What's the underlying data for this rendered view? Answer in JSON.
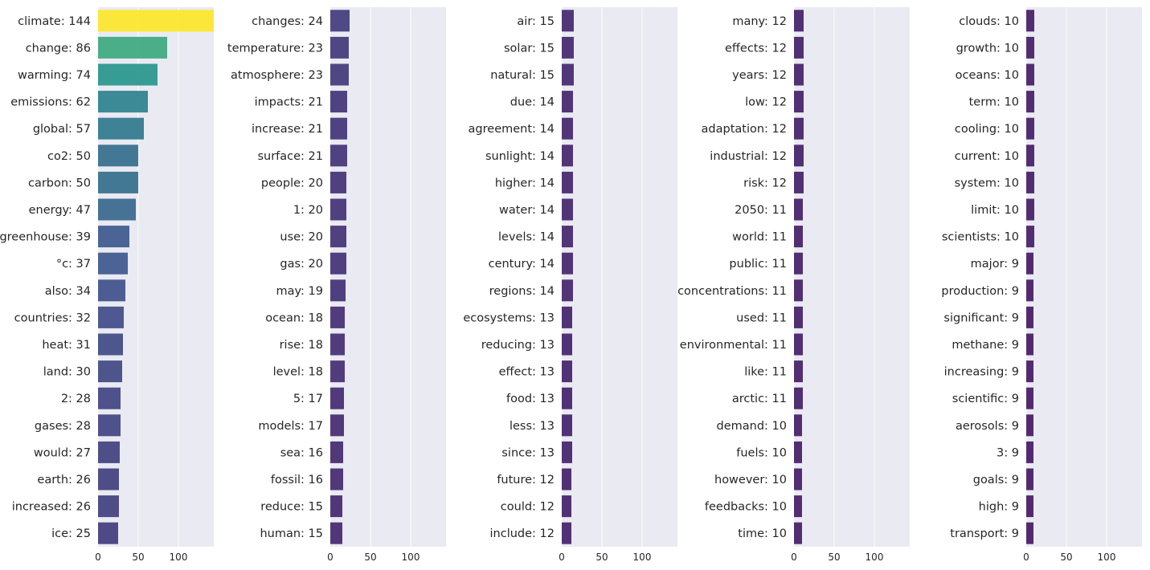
{
  "chart_data": {
    "type": "bar",
    "orientation": "horizontal",
    "xlim": [
      0,
      144
    ],
    "xticks": [
      0,
      50,
      100
    ],
    "grid": true,
    "palette": "viridis",
    "panels": [
      {
        "categories": [
          "climate: 144",
          "change: 86",
          "warming: 74",
          "emissions: 62",
          "global: 57",
          "co2: 50",
          "carbon: 50",
          "energy: 47",
          "greenhouse: 39",
          "°c: 37",
          "also: 34",
          "countries: 32",
          "heat: 31",
          "land: 30",
          "2: 28",
          "gases: 28",
          "would: 27",
          "earth: 26",
          "increased: 26",
          "ice: 25"
        ],
        "values": [
          144,
          86,
          74,
          62,
          57,
          50,
          50,
          47,
          39,
          37,
          34,
          32,
          31,
          30,
          28,
          28,
          27,
          26,
          26,
          25
        ]
      },
      {
        "categories": [
          "changes: 24",
          "temperature: 23",
          "atmosphere: 23",
          "impacts: 21",
          "increase: 21",
          "surface: 21",
          "people: 20",
          "1: 20",
          "use: 20",
          "gas: 20",
          "may: 19",
          "ocean: 18",
          "rise: 18",
          "level: 18",
          "5: 17",
          "models: 17",
          "sea: 16",
          "fossil: 16",
          "reduce: 15",
          "human: 15"
        ],
        "values": [
          24,
          23,
          23,
          21,
          21,
          21,
          20,
          20,
          20,
          20,
          19,
          18,
          18,
          18,
          17,
          17,
          16,
          16,
          15,
          15
        ]
      },
      {
        "categories": [
          "air: 15",
          "solar: 15",
          "natural: 15",
          "due: 14",
          "agreement: 14",
          "sunlight: 14",
          "higher: 14",
          "water: 14",
          "levels: 14",
          "century: 14",
          "regions: 14",
          "ecosystems: 13",
          "reducing: 13",
          "effect: 13",
          "food: 13",
          "less: 13",
          "since: 13",
          "future: 12",
          "could: 12",
          "include: 12"
        ],
        "values": [
          15,
          15,
          15,
          14,
          14,
          14,
          14,
          14,
          14,
          14,
          14,
          13,
          13,
          13,
          13,
          13,
          13,
          12,
          12,
          12
        ]
      },
      {
        "categories": [
          "many: 12",
          "effects: 12",
          "years: 12",
          "low: 12",
          "adaptation: 12",
          "industrial: 12",
          "risk: 12",
          "2050: 11",
          "world: 11",
          "public: 11",
          "concentrations: 11",
          "used: 11",
          "environmental: 11",
          "like: 11",
          "arctic: 11",
          "demand: 10",
          "fuels: 10",
          "however: 10",
          "feedbacks: 10",
          "time: 10"
        ],
        "values": [
          12,
          12,
          12,
          12,
          12,
          12,
          12,
          11,
          11,
          11,
          11,
          11,
          11,
          11,
          11,
          10,
          10,
          10,
          10,
          10
        ]
      },
      {
        "categories": [
          "clouds: 10",
          "growth: 10",
          "oceans: 10",
          "term: 10",
          "cooling: 10",
          "current: 10",
          "system: 10",
          "limit: 10",
          "scientists: 10",
          "major: 9",
          "production: 9",
          "significant: 9",
          "methane: 9",
          "increasing: 9",
          "scientific: 9",
          "aerosols: 9",
          "3: 9",
          "goals: 9",
          "high: 9",
          "transport: 9"
        ],
        "values": [
          10,
          10,
          10,
          10,
          10,
          10,
          10,
          10,
          10,
          9,
          9,
          9,
          9,
          9,
          9,
          9,
          9,
          9,
          9,
          9
        ]
      }
    ]
  },
  "colors": {
    "plot_bg": "#eaeaf2",
    "grid": "#ffffff",
    "text": "#262626"
  }
}
